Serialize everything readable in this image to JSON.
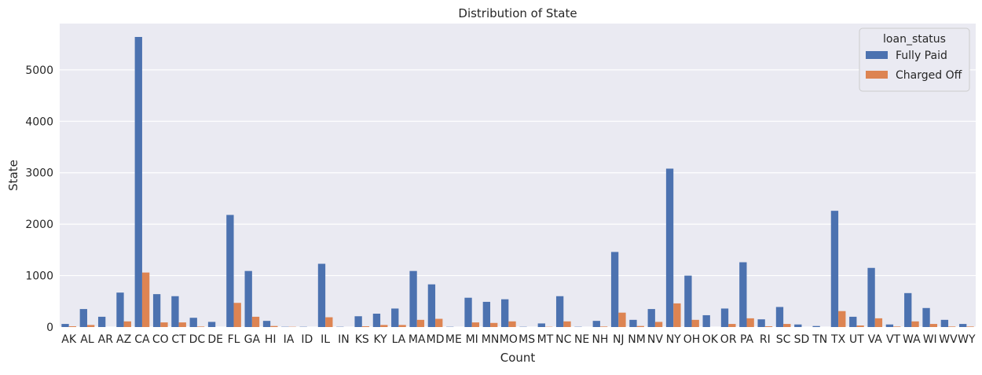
{
  "chart_data": {
    "type": "bar",
    "title": "Distribution of State",
    "xlabel": "Count",
    "ylabel": "State",
    "ylim": [
      0,
      5900
    ],
    "yticks": [
      0,
      1000,
      2000,
      3000,
      4000,
      5000
    ],
    "grid": true,
    "legend": {
      "title": "loan_status",
      "placement": "top-right"
    },
    "categories": [
      "AK",
      "AL",
      "AR",
      "AZ",
      "CA",
      "CO",
      "CT",
      "DC",
      "DE",
      "FL",
      "GA",
      "HI",
      "IA",
      "ID",
      "IL",
      "IN",
      "KS",
      "KY",
      "LA",
      "MA",
      "MD",
      "ME",
      "MI",
      "MN",
      "MO",
      "MS",
      "MT",
      "NC",
      "NE",
      "NH",
      "NJ",
      "NM",
      "NV",
      "NY",
      "OH",
      "OK",
      "OR",
      "PA",
      "RI",
      "SC",
      "SD",
      "TN",
      "TX",
      "UT",
      "VA",
      "VT",
      "WA",
      "WI",
      "WV",
      "WY"
    ],
    "series": [
      {
        "name": "Fully Paid",
        "color": "#4c72b0",
        "values": [
          60,
          350,
          200,
          670,
          5640,
          640,
          600,
          180,
          100,
          2180,
          1090,
          120,
          5,
          5,
          1230,
          5,
          210,
          260,
          360,
          1090,
          830,
          5,
          570,
          490,
          540,
          5,
          70,
          600,
          5,
          120,
          1460,
          140,
          350,
          3080,
          1000,
          230,
          360,
          1260,
          150,
          390,
          50,
          20,
          2260,
          200,
          1150,
          50,
          660,
          370,
          140,
          60
        ]
      },
      {
        "name": "Charged Off",
        "color": "#dd8452",
        "values": [
          15,
          40,
          0,
          110,
          1060,
          90,
          90,
          10,
          0,
          470,
          200,
          20,
          5,
          0,
          190,
          0,
          15,
          40,
          40,
          140,
          160,
          0,
          90,
          80,
          110,
          0,
          5,
          110,
          0,
          10,
          280,
          20,
          100,
          460,
          140,
          0,
          60,
          170,
          15,
          60,
          0,
          0,
          310,
          30,
          170,
          10,
          110,
          60,
          10,
          10
        ]
      }
    ]
  }
}
